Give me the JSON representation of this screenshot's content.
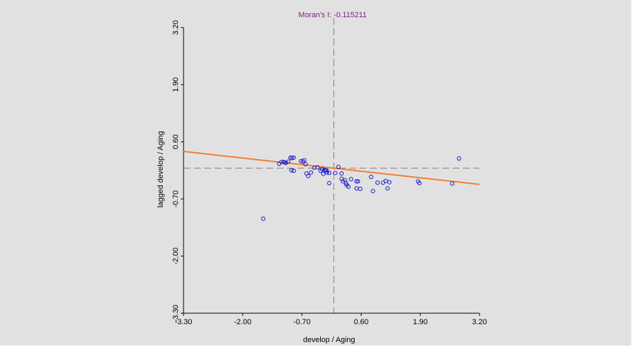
{
  "chart_data": {
    "type": "scatter",
    "title": "Moran's I: -0.115211",
    "xlabel": "develop / Aging",
    "ylabel": "lagged develop / Aging",
    "xlim": [
      -3.3,
      3.2
    ],
    "ylim": [
      -3.3,
      3.2
    ],
    "x_ticks": [
      "-3.30",
      "-2.00",
      "-0.70",
      "0.60",
      "1.90",
      "3.20"
    ],
    "y_ticks": [
      "-3.30",
      "-2.00",
      "-0.70",
      "0.60",
      "1.90",
      "3.20"
    ],
    "mean_lines": {
      "x": 0,
      "y": 0
    },
    "regression": {
      "slope": -0.115211,
      "intercept": 0
    },
    "colors": {
      "background": "#e1e1e1",
      "points": "#1a1ad0",
      "regression": "#f47b30",
      "title": "#7b1f7b",
      "axis": "#000000",
      "mean_line": "#808080"
    },
    "points": [
      [
        -1.55,
        -1.15
      ],
      [
        -1.2,
        0.1
      ],
      [
        -1.15,
        0.14
      ],
      [
        -1.1,
        0.14
      ],
      [
        -1.08,
        0.13
      ],
      [
        -1.05,
        0.12
      ],
      [
        -1.0,
        0.15
      ],
      [
        -0.95,
        0.24
      ],
      [
        -0.92,
        0.23
      ],
      [
        -0.88,
        0.24
      ],
      [
        -0.93,
        -0.05
      ],
      [
        -0.88,
        -0.06
      ],
      [
        -0.72,
        0.16
      ],
      [
        -0.68,
        0.15
      ],
      [
        -0.65,
        0.18
      ],
      [
        -0.62,
        0.09
      ],
      [
        -0.6,
        -0.12
      ],
      [
        -0.56,
        -0.18
      ],
      [
        -0.5,
        -0.1
      ],
      [
        -0.43,
        0.01
      ],
      [
        -0.36,
        0.02
      ],
      [
        -0.29,
        -0.06
      ],
      [
        -0.26,
        -0.02
      ],
      [
        -0.23,
        -0.13
      ],
      [
        -0.2,
        -0.04
      ],
      [
        -0.18,
        -0.05
      ],
      [
        -0.16,
        -0.05
      ],
      [
        -0.15,
        -0.1
      ],
      [
        -0.1,
        -0.11
      ],
      [
        -0.1,
        -0.34
      ],
      [
        0.03,
        -0.11
      ],
      [
        0.1,
        0.03
      ],
      [
        0.17,
        -0.12
      ],
      [
        0.17,
        -0.24
      ],
      [
        0.2,
        -0.3
      ],
      [
        0.24,
        -0.27
      ],
      [
        0.27,
        -0.34
      ],
      [
        0.28,
        -0.38
      ],
      [
        0.32,
        -0.42
      ],
      [
        0.38,
        -0.25
      ],
      [
        0.5,
        -0.3
      ],
      [
        0.5,
        -0.46
      ],
      [
        0.53,
        -0.3
      ],
      [
        0.58,
        -0.47
      ],
      [
        0.82,
        -0.2
      ],
      [
        0.86,
        -0.52
      ],
      [
        0.96,
        -0.33
      ],
      [
        1.08,
        -0.33
      ],
      [
        1.14,
        -0.29
      ],
      [
        1.18,
        -0.46
      ],
      [
        1.22,
        -0.32
      ],
      [
        1.85,
        -0.3
      ],
      [
        1.88,
        -0.34
      ],
      [
        2.6,
        -0.35
      ],
      [
        2.75,
        0.22
      ]
    ]
  }
}
